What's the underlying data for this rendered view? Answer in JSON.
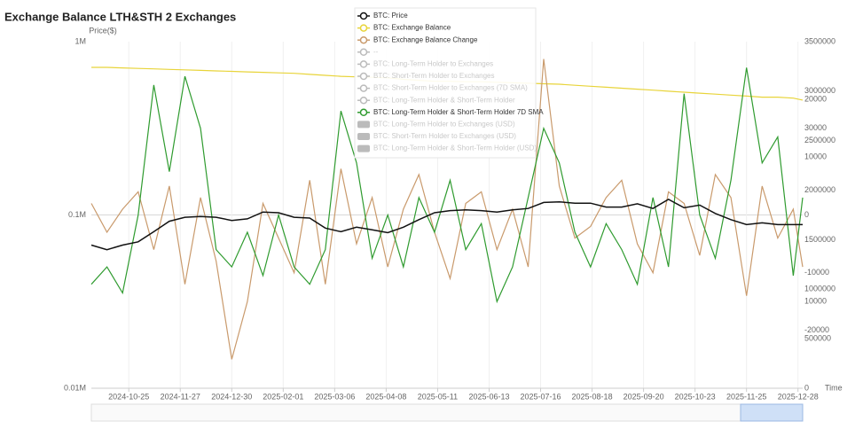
{
  "chart_data": {
    "type": "line",
    "title": "Exchange Balance LTH&STH 2 Exchanges",
    "y_label": "Price($)",
    "x_label": "Time",
    "log_y": true,
    "ylim": [
      10000,
      1000000
    ],
    "yticks": [
      {
        "value": 1000000,
        "label": "1M"
      },
      {
        "value": 100000,
        "label": "0.1M"
      },
      {
        "value": 10000,
        "label": "0.01M"
      }
    ],
    "y2lim": [
      0,
      3500000
    ],
    "y2ticks": [
      3500000,
      3000000,
      2500000,
      2000000,
      1500000,
      1000000,
      500000,
      0
    ],
    "y3lim": [
      -30000,
      30000
    ],
    "y3ticks": [
      20000,
      10000,
      0,
      -10000,
      -20000
    ],
    "y4lim": [
      0,
      40000
    ],
    "y4ticks": [
      30000,
      10000
    ],
    "xlim": [
      "2024-10-01",
      "2025-12-31"
    ],
    "xticks": [
      "2024-10-25",
      "2024-11-27",
      "2024-12-30",
      "2025-02-01",
      "2025-03-06",
      "2025-04-08",
      "2025-05-11",
      "2025-06-13",
      "2025-07-16",
      "2025-08-18",
      "2025-09-20",
      "2025-10-23",
      "2025-11-25",
      "2025-12-28"
    ],
    "grid": true,
    "x": [
      "2024-10-01",
      "2024-10-11",
      "2024-10-21",
      "2024-10-31",
      "2024-11-10",
      "2024-11-20",
      "2024-11-30",
      "2024-12-10",
      "2024-12-20",
      "2024-12-30",
      "2025-01-09",
      "2025-01-19",
      "2025-01-29",
      "2025-02-08",
      "2025-02-18",
      "2025-02-28",
      "2025-03-10",
      "2025-03-20",
      "2025-03-30",
      "2025-04-09",
      "2025-04-19",
      "2025-04-29",
      "2025-05-09",
      "2025-05-19",
      "2025-05-29",
      "2025-06-08",
      "2025-06-18",
      "2025-06-28",
      "2025-07-08",
      "2025-07-18",
      "2025-07-28",
      "2025-08-07",
      "2025-08-17",
      "2025-08-27",
      "2025-09-06",
      "2025-09-16",
      "2025-09-26",
      "2025-10-06",
      "2025-10-16",
      "2025-10-26",
      "2025-11-05",
      "2025-11-15",
      "2025-11-25",
      "2025-12-05",
      "2025-12-15",
      "2025-12-25",
      "2025-12-31"
    ],
    "series": [
      {
        "name": "BTC: Price",
        "color": "#111111",
        "axis": "y",
        "visible": true,
        "marker": "line",
        "values": [
          67000,
          63000,
          67000,
          70000,
          80000,
          92000,
          97000,
          98000,
          97000,
          93000,
          95000,
          104000,
          103000,
          97000,
          96000,
          84000,
          80000,
          85000,
          82000,
          79000,
          85000,
          94000,
          103000,
          106000,
          107000,
          106000,
          104000,
          107000,
          109000,
          118000,
          119000,
          117000,
          117000,
          111000,
          111000,
          116000,
          109000,
          123000,
          110000,
          114000,
          102000,
          94000,
          88000,
          90000,
          88000,
          88000,
          88000
        ]
      },
      {
        "name": "BTC: Exchange Balance",
        "color": "#e8d43a",
        "axis": "y2",
        "visible": true,
        "marker": "line",
        "values": [
          3240000,
          3240000,
          3235000,
          3230000,
          3225000,
          3220000,
          3215000,
          3210000,
          3205000,
          3200000,
          3195000,
          3190000,
          3185000,
          3180000,
          3170000,
          3160000,
          3150000,
          3145000,
          3140000,
          3135000,
          3120000,
          3110000,
          3100000,
          3100000,
          3095000,
          3095000,
          3090000,
          3085000,
          3080000,
          3075000,
          3070000,
          3060000,
          3050000,
          3040000,
          3030000,
          3020000,
          3010000,
          3000000,
          2990000,
          2980000,
          2970000,
          2960000,
          2950000,
          2940000,
          2940000,
          2930000,
          2910000
        ]
      },
      {
        "name": "BTC: Exchange Balance Change",
        "color": "#c99a6c",
        "axis": "y3",
        "visible": true,
        "marker": "line",
        "values": [
          2000,
          -3000,
          1000,
          4000,
          -6000,
          5000,
          -12000,
          3000,
          -8000,
          -25000,
          -15000,
          2000,
          -4000,
          -10000,
          6000,
          -12000,
          8000,
          -5000,
          3000,
          -9000,
          1000,
          7000,
          -3000,
          -11000,
          2000,
          4000,
          -6000,
          1000,
          -9000,
          27000,
          5000,
          -4000,
          -2000,
          3000,
          6000,
          -5000,
          -10000,
          4000,
          2000,
          -7000,
          7000,
          3000,
          -14000,
          5000,
          -4000,
          1000,
          -9000
        ]
      },
      {
        "name": "--",
        "color": "#bbbbbb",
        "visible": false,
        "marker": "line"
      },
      {
        "name": "BTC: Long-Term Holder to Exchanges",
        "color": "#bbbbbb",
        "visible": false,
        "marker": "line"
      },
      {
        "name": "BTC: Short-Term Holder to Exchanges",
        "color": "#bbbbbb",
        "visible": false,
        "marker": "line"
      },
      {
        "name": "BTC: Short-Term Holder to Exchanges (7D SMA)",
        "color": "#bbbbbb",
        "visible": false,
        "marker": "line"
      },
      {
        "name": "BTC: Long-Term Holder & Short-Term Holder",
        "color": "#bbbbbb",
        "visible": false,
        "marker": "line"
      },
      {
        "name": "BTC: Long-Term Holder & Short-Term Holder 7D SMA",
        "color": "#2f9b2f",
        "axis": "y4",
        "visible": true,
        "marker": "line",
        "values": [
          12000,
          14000,
          11000,
          20000,
          35000,
          25000,
          36000,
          30000,
          16000,
          14000,
          18000,
          13000,
          20000,
          14000,
          12000,
          16000,
          32000,
          26000,
          15000,
          20000,
          14000,
          22000,
          18000,
          24000,
          16000,
          19000,
          10000,
          14000,
          22000,
          30000,
          26000,
          18000,
          14000,
          19000,
          16000,
          12000,
          22000,
          14000,
          34000,
          20000,
          15000,
          24000,
          37000,
          26000,
          29000,
          13000,
          22000
        ]
      },
      {
        "name": "BTC: Long-Term Holder to Exchanges (USD)",
        "color": "#bbbbbb",
        "visible": false,
        "marker": "bar"
      },
      {
        "name": "BTC: Short-Term Holder to Exchanges (USD)",
        "color": "#bbbbbb",
        "visible": false,
        "marker": "bar"
      },
      {
        "name": "BTC: Long-Term Holder & Short-Term Holder (USD)",
        "color": "#bbbbbb",
        "visible": false,
        "marker": "bar"
      }
    ]
  }
}
